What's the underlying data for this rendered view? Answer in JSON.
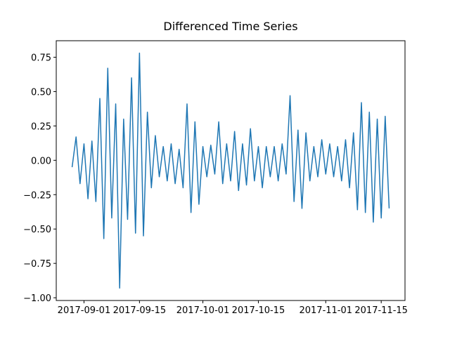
{
  "chart_data": {
    "type": "line",
    "title": "Differenced Time Series",
    "x": [
      "2017-08-29",
      "2017-08-30",
      "2017-08-31",
      "2017-09-01",
      "2017-09-02",
      "2017-09-03",
      "2017-09-04",
      "2017-09-05",
      "2017-09-06",
      "2017-09-07",
      "2017-09-08",
      "2017-09-09",
      "2017-09-10",
      "2017-09-11",
      "2017-09-12",
      "2017-09-13",
      "2017-09-14",
      "2017-09-15",
      "2017-09-16",
      "2017-09-17",
      "2017-09-18",
      "2017-09-19",
      "2017-09-20",
      "2017-09-21",
      "2017-09-22",
      "2017-09-23",
      "2017-09-24",
      "2017-09-25",
      "2017-09-26",
      "2017-09-27",
      "2017-09-28",
      "2017-09-29",
      "2017-09-30",
      "2017-10-01",
      "2017-10-02",
      "2017-10-03",
      "2017-10-04",
      "2017-10-05",
      "2017-10-06",
      "2017-10-07",
      "2017-10-08",
      "2017-10-09",
      "2017-10-10",
      "2017-10-11",
      "2017-10-12",
      "2017-10-13",
      "2017-10-14",
      "2017-10-15",
      "2017-10-16",
      "2017-10-17",
      "2017-10-18",
      "2017-10-19",
      "2017-10-20",
      "2017-10-21",
      "2017-10-22",
      "2017-10-23",
      "2017-10-24",
      "2017-10-25",
      "2017-10-26",
      "2017-10-27",
      "2017-10-28",
      "2017-10-29",
      "2017-10-30",
      "2017-10-31",
      "2017-11-01",
      "2017-11-02",
      "2017-11-03",
      "2017-11-04",
      "2017-11-05",
      "2017-11-06",
      "2017-11-07",
      "2017-11-08",
      "2017-11-09",
      "2017-11-10",
      "2017-11-11",
      "2017-11-12",
      "2017-11-13",
      "2017-11-14",
      "2017-11-15",
      "2017-11-16",
      "2017-11-17"
    ],
    "values": [
      -0.05,
      0.17,
      -0.17,
      0.12,
      -0.28,
      0.14,
      -0.3,
      0.45,
      -0.57,
      0.67,
      -0.42,
      0.41,
      -0.93,
      0.3,
      -0.43,
      0.6,
      -0.53,
      0.78,
      -0.55,
      0.35,
      -0.2,
      0.18,
      -0.12,
      0.1,
      -0.15,
      0.12,
      -0.17,
      0.08,
      -0.2,
      0.41,
      -0.38,
      0.28,
      -0.32,
      0.1,
      -0.12,
      0.11,
      -0.1,
      0.28,
      -0.17,
      0.12,
      -0.15,
      0.21,
      -0.22,
      0.12,
      -0.18,
      0.23,
      -0.15,
      0.1,
      -0.2,
      0.1,
      -0.12,
      0.1,
      -0.15,
      0.12,
      -0.1,
      0.47,
      -0.3,
      0.22,
      -0.35,
      0.2,
      -0.15,
      0.1,
      -0.12,
      0.15,
      -0.1,
      0.12,
      -0.12,
      0.1,
      -0.15,
      0.15,
      -0.2,
      0.2,
      -0.36,
      0.42,
      -0.38,
      0.35,
      -0.45,
      0.3,
      -0.42,
      0.32,
      -0.35
    ],
    "color": "#1f77b4",
    "xlim": [
      "2017-08-25",
      "2017-11-21"
    ],
    "xticks": [
      "2017-09-01",
      "2017-09-15",
      "2017-10-01",
      "2017-10-15",
      "2017-11-01",
      "2017-11-15"
    ],
    "ylim": [
      -1.02,
      0.87
    ],
    "yticks": [
      {
        "value": 0.75,
        "label": "0.75"
      },
      {
        "value": 0.5,
        "label": "0.50"
      },
      {
        "value": 0.25,
        "label": "0.25"
      },
      {
        "value": 0,
        "label": "0.00"
      },
      {
        "value": -0.25,
        "label": "−0.25"
      },
      {
        "value": -0.5,
        "label": "−0.50"
      },
      {
        "value": -0.75,
        "label": "−0.75"
      },
      {
        "value": -1,
        "label": "−1.00"
      }
    ]
  }
}
